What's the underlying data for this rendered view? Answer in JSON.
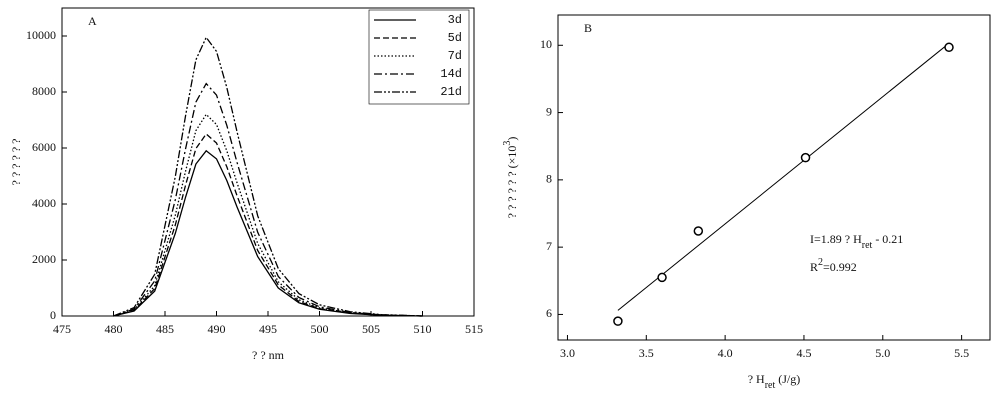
{
  "chart_data": [
    {
      "type": "line",
      "panel_label": "A",
      "x_label": [
        {
          "text": "? ?  nm"
        }
      ],
      "y_label": [
        {
          "text": "? ? ? ? ? ?"
        }
      ],
      "x": [
        480,
        482,
        484,
        486,
        487,
        488,
        489,
        490,
        491,
        492,
        494,
        496,
        498,
        500,
        503,
        506,
        510
      ],
      "series": [
        {
          "name": "3d",
          "color": "#000000",
          "dash": "solid",
          "values": [
            0,
            180,
            890,
            2950,
            4250,
            5430,
            5900,
            5610,
            4840,
            3890,
            2120,
            1000,
            470,
            240,
            90,
            30,
            0
          ]
        },
        {
          "name": "5d",
          "color": "#000000",
          "dash": "dashed",
          "values": [
            0,
            200,
            980,
            3250,
            4680,
            5980,
            6500,
            6180,
            5330,
            4290,
            2340,
            1110,
            520,
            260,
            100,
            30,
            0
          ]
        },
        {
          "name": "7d",
          "color": "#000000",
          "dash": "dotted",
          "values": [
            0,
            220,
            1080,
            3600,
            5180,
            6620,
            7200,
            6840,
            5900,
            4750,
            2590,
            1220,
            580,
            290,
            110,
            40,
            0
          ]
        },
        {
          "name": "14d",
          "color": "#000000",
          "dash": "dashdot",
          "values": [
            0,
            250,
            1250,
            4150,
            5980,
            7640,
            8300,
            7890,
            6810,
            5480,
            2990,
            1410,
            660,
            330,
            120,
            40,
            0
          ]
        },
        {
          "name": "21d",
          "color": "#000000",
          "dash": "dashdotdot",
          "values": [
            0,
            300,
            1490,
            4980,
            7160,
            9150,
            9950,
            9450,
            8160,
            6570,
            3580,
            1690,
            800,
            400,
            150,
            50,
            0
          ]
        }
      ],
      "xlim": [
        475,
        515
      ],
      "xticks": [
        475,
        480,
        485,
        490,
        495,
        500,
        505,
        510,
        515
      ],
      "ylim": [
        0,
        11000
      ],
      "yticks": [
        0,
        2000,
        4000,
        6000,
        8000,
        10000
      ],
      "legend": "upper right",
      "grid": false
    },
    {
      "type": "scatter",
      "panel_label": "B",
      "x_label": [
        {
          "text": "? H"
        },
        {
          "text": "ret",
          "shift": "sub"
        },
        {
          "text": "  (J/g)"
        }
      ],
      "y_label": [
        {
          "text": "? ? ? ? ? ?   (×10"
        },
        {
          "text": "3",
          "shift": "super"
        },
        {
          "text": ")"
        }
      ],
      "x": [
        3.32,
        3.6,
        3.83,
        4.51,
        5.42
      ],
      "values": [
        5.9,
        6.55,
        7.24,
        8.33,
        9.97
      ],
      "color": "#000000",
      "fit": {
        "x": [
          3.32,
          5.42
        ],
        "values": [
          6.06,
          10.03
        ]
      },
      "annotations": [
        [
          {
            "text": "I=1.89 ? H"
          },
          {
            "text": "ret",
            "shift": "sub"
          },
          {
            "text": " - 0.21"
          }
        ],
        [
          {
            "text": "R"
          },
          {
            "text": "2",
            "shift": "super"
          },
          {
            "text": "=0.992"
          }
        ]
      ],
      "xlim": [
        2.94,
        5.68
      ],
      "xticks": [
        {
          "value": 3,
          "label": "3.0"
        },
        {
          "value": 3.5,
          "label": "3.5"
        },
        {
          "value": 4,
          "label": "4.0"
        },
        {
          "value": 4.5,
          "label": "4.5"
        },
        {
          "value": 5,
          "label": "5.0"
        },
        {
          "value": 5.5,
          "label": "5.5"
        }
      ],
      "ylim": [
        5.62,
        10.45
      ],
      "yticks": [
        6,
        7,
        8,
        9,
        10
      ],
      "grid": false
    }
  ]
}
